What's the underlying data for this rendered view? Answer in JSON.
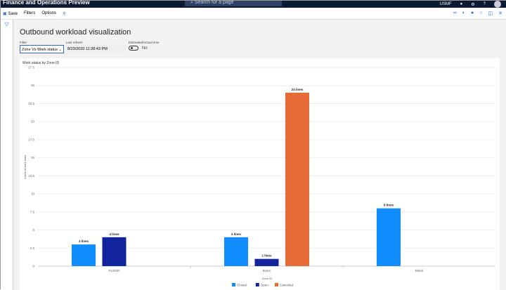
{
  "app": {
    "title": "Finance and Operations Preview",
    "search_placeholder": "Search for a page",
    "company": "USMF"
  },
  "toolbar": {
    "save": "Save",
    "filters": "Filters",
    "options": "Options"
  },
  "page": {
    "title": "Outbound workload visualization",
    "filter_label": "Filter",
    "filter_value": "Zone Vs Work status",
    "refresh_label": "Last refresh",
    "refresh_value": "8/23/2020 11:28:43 PM",
    "time_label": "Estimated/Actual time",
    "time_value": "No"
  },
  "colors": {
    "closed": "#118dff",
    "open": "#12239e",
    "canceled": "#e66c37"
  },
  "chart_data": {
    "type": "bar",
    "title": "Work status by Zone ID",
    "xlabel": "Zone ID",
    "ylabel": "Count of work lines",
    "ylim": [
      0,
      27.5
    ],
    "yticks": [
      "0",
      "2.5",
      "5",
      "7.5",
      "10",
      "12.5",
      "15",
      "17.5",
      "20",
      "22.5",
      "25",
      "27.5"
    ],
    "categories": [
      "FLOOR",
      "BULK",
      "Blank"
    ],
    "grid": true,
    "legend": "bottom",
    "series": [
      {
        "name": "Closed",
        "values": [
          3,
          4,
          8
        ],
        "labels": [
          "3 lines",
          "4 lines",
          "8 lines"
        ]
      },
      {
        "name": "Open",
        "values": [
          4,
          1,
          null
        ],
        "labels": [
          "4 lines",
          "1 lines",
          ""
        ]
      },
      {
        "name": "Canceled",
        "values": [
          null,
          24,
          null
        ],
        "labels": [
          "",
          "24 lines",
          ""
        ]
      }
    ]
  }
}
